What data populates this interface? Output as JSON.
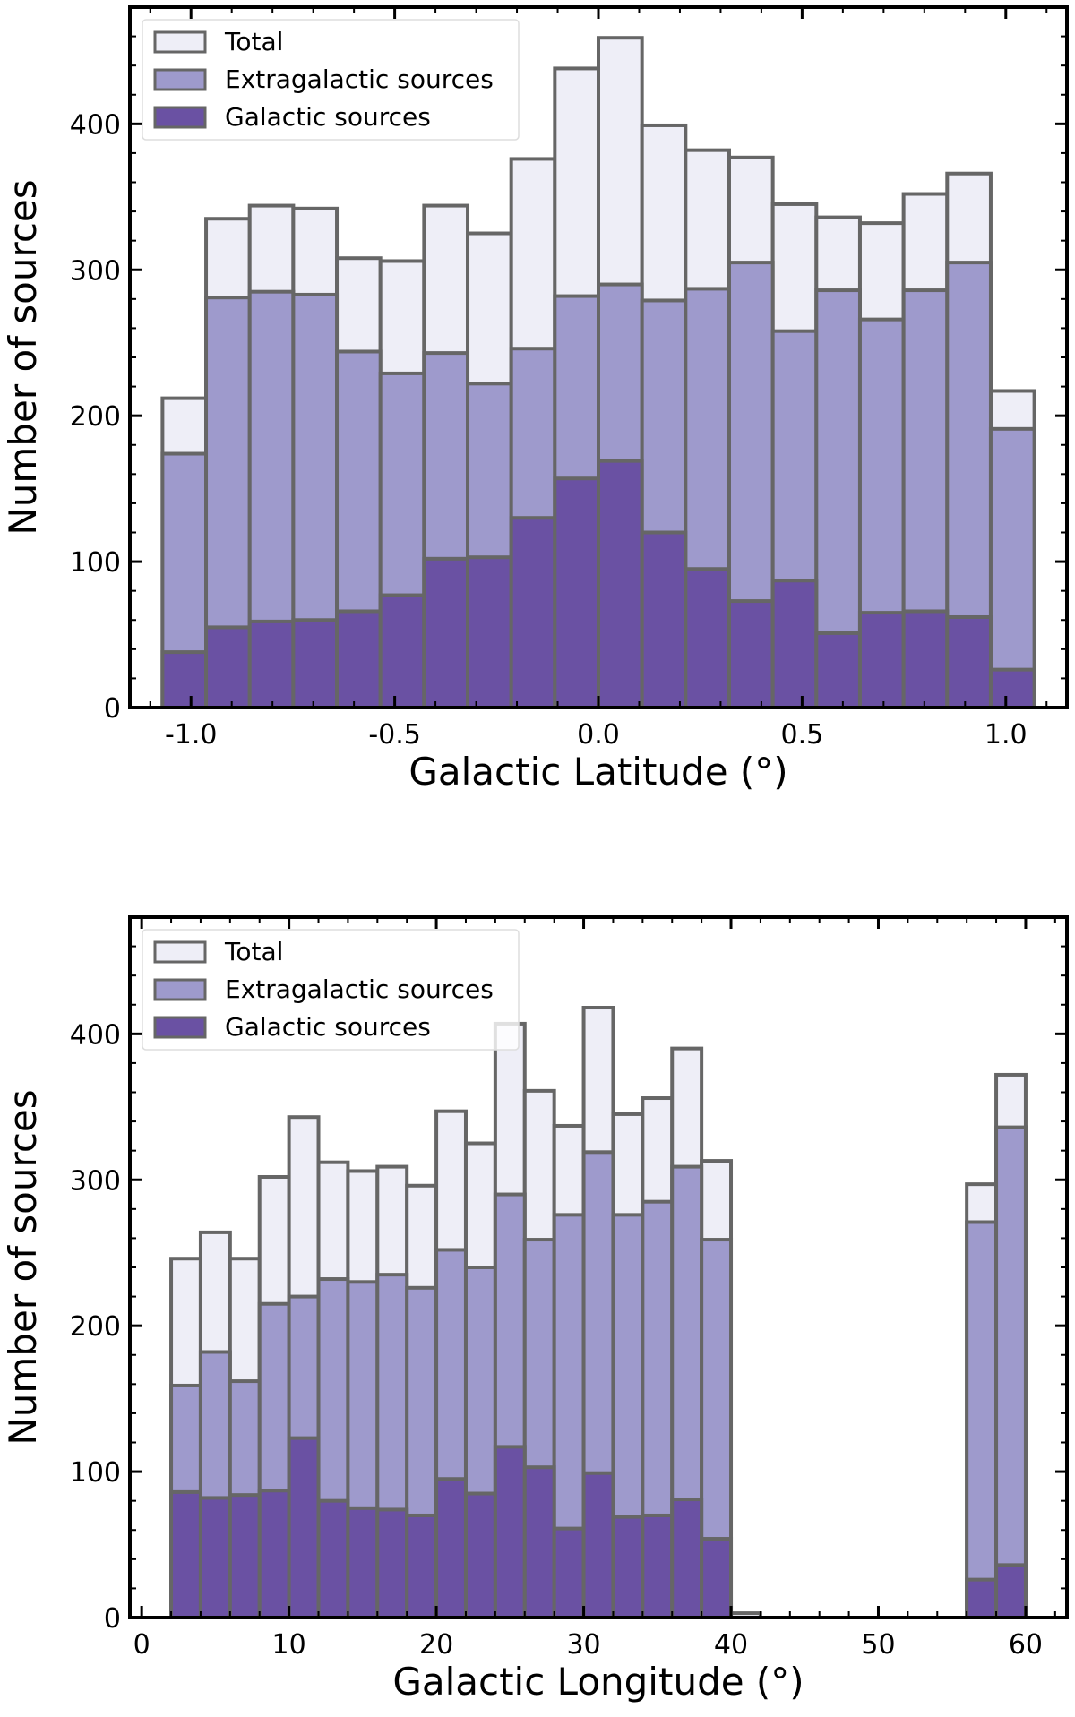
{
  "colors": {
    "total": "#eeeef7",
    "extragalactic": "#9e9acc",
    "galactic": "#6a51a3",
    "edge": "#666666"
  },
  "legend": {
    "total": "Total",
    "extragalactic": "Extragalactic sources",
    "galactic": "Galactic sources"
  },
  "chart_data": [
    {
      "type": "bar",
      "stacking": "overlaid histograms",
      "xlabel": "Galactic Latitude (°)",
      "ylabel": "Number of sources",
      "xlim": [
        -1.15,
        1.15
      ],
      "ylim": [
        0,
        480
      ],
      "xticks": [
        -1.0,
        -0.5,
        0.0,
        0.5,
        1.0
      ],
      "xtick_labels": [
        "-1.0",
        "-0.5",
        "0.0",
        "0.5",
        "1.0"
      ],
      "yticks": [
        0,
        100,
        200,
        300,
        400
      ],
      "ytick_labels": [
        "0",
        "100",
        "200",
        "300",
        "400"
      ],
      "x_minor_step": 0.1,
      "y_minor_step": 20,
      "bin_edges": [
        -1.07,
        -0.963,
        -0.856,
        -0.749,
        -0.642,
        -0.535,
        -0.428,
        -0.321,
        -0.214,
        -0.107,
        0.0,
        0.107,
        0.214,
        0.321,
        0.428,
        0.535,
        0.642,
        0.749,
        0.856,
        0.963,
        1.07
      ],
      "series": [
        {
          "name": "Total",
          "values": [
            212,
            335,
            344,
            342,
            308,
            306,
            344,
            325,
            376,
            438,
            459,
            399,
            382,
            377,
            345,
            336,
            332,
            352,
            366,
            217
          ]
        },
        {
          "name": "Extragalactic sources",
          "values": [
            174,
            281,
            285,
            283,
            244,
            229,
            243,
            222,
            246,
            282,
            290,
            279,
            287,
            305,
            258,
            286,
            266,
            286,
            305,
            191
          ]
        },
        {
          "name": "Galactic sources",
          "values": [
            38,
            55,
            59,
            60,
            66,
            77,
            102,
            103,
            130,
            157,
            169,
            120,
            95,
            73,
            87,
            51,
            65,
            66,
            62,
            26
          ]
        }
      ],
      "legend_position": "upper-left"
    },
    {
      "type": "bar",
      "stacking": "overlaid histograms",
      "xlabel": "Galactic Longitude (°)",
      "ylabel": "Number of sources",
      "xlim": [
        -0.8,
        62.8
      ],
      "ylim": [
        0,
        480
      ],
      "xticks": [
        0,
        10,
        20,
        30,
        40,
        50,
        60
      ],
      "xtick_labels": [
        "0",
        "10",
        "20",
        "30",
        "40",
        "50",
        "60"
      ],
      "yticks": [
        0,
        100,
        200,
        300,
        400
      ],
      "ytick_labels": [
        "0",
        "100",
        "200",
        "300",
        "400"
      ],
      "x_minor_step": 2,
      "y_minor_step": 20,
      "bin_edges": [
        2,
        4,
        6,
        8,
        10,
        12,
        14,
        16,
        18,
        20,
        22,
        24,
        26,
        28,
        30,
        32,
        34,
        36,
        38,
        40,
        42,
        44,
        46,
        48,
        50,
        52,
        54,
        56,
        58,
        60
      ],
      "series": [
        {
          "name": "Total",
          "values": [
            246,
            264,
            246,
            302,
            343,
            312,
            306,
            309,
            296,
            347,
            325,
            407,
            361,
            337,
            418,
            345,
            356,
            390,
            313,
            3,
            0,
            0,
            0,
            0,
            0,
            0,
            0,
            297,
            372
          ]
        },
        {
          "name": "Extragalactic sources",
          "values": [
            159,
            182,
            162,
            215,
            220,
            232,
            230,
            235,
            226,
            252,
            240,
            290,
            259,
            276,
            319,
            276,
            285,
            309,
            259,
            0,
            0,
            0,
            0,
            0,
            0,
            0,
            0,
            271,
            336
          ]
        },
        {
          "name": "Galactic sources",
          "values": [
            86,
            82,
            84,
            87,
            123,
            80,
            75,
            74,
            70,
            95,
            85,
            117,
            103,
            61,
            99,
            69,
            70,
            81,
            54,
            0,
            0,
            0,
            0,
            0,
            0,
            0,
            0,
            26,
            36
          ]
        }
      ],
      "legend_position": "upper-left"
    }
  ]
}
